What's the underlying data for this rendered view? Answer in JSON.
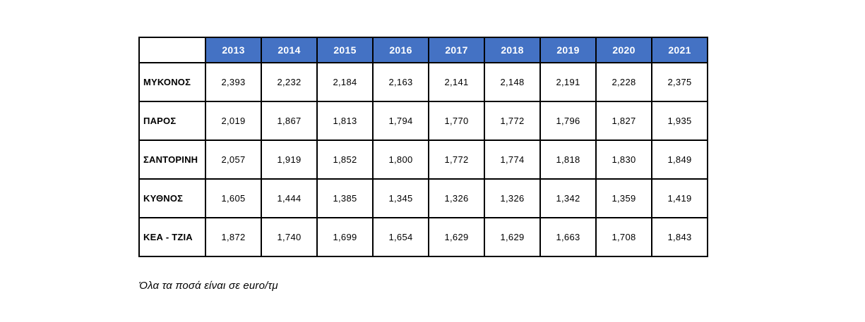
{
  "colors": {
    "header_bg": "#4472C4",
    "header_text": "#FFFFFF",
    "border": "#000000"
  },
  "chart_data": {
    "type": "table",
    "columns": [
      "2013",
      "2014",
      "2015",
      "2016",
      "2017",
      "2018",
      "2019",
      "2020",
      "2021"
    ],
    "rows": [
      {
        "label": "ΜΥΚΟΝΟΣ",
        "values": [
          "2,393",
          "2,232",
          "2,184",
          "2,163",
          "2,141",
          "2,148",
          "2,191",
          "2,228",
          "2,375"
        ]
      },
      {
        "label": "ΠΑΡΟΣ",
        "values": [
          "2,019",
          "1,867",
          "1,813",
          "1,794",
          "1,770",
          "1,772",
          "1,796",
          "1,827",
          "1,935"
        ]
      },
      {
        "label": "ΣΑΝΤΟΡΙΝΗ",
        "values": [
          "2,057",
          "1,919",
          "1,852",
          "1,800",
          "1,772",
          "1,774",
          "1,818",
          "1,830",
          "1,849"
        ]
      },
      {
        "label": "ΚΥΘΝΟΣ",
        "values": [
          "1,605",
          "1,444",
          "1,385",
          "1,345",
          "1,326",
          "1,326",
          "1,342",
          "1,359",
          "1,419"
        ]
      },
      {
        "label": "ΚΕΑ - ΤΖΙΑ",
        "values": [
          "1,872",
          "1,740",
          "1,699",
          "1,654",
          "1,629",
          "1,629",
          "1,663",
          "1,708",
          "1,843"
        ]
      }
    ],
    "unit_note": "Όλα τα ποσά είναι σε euro/τμ",
    "legend_position": "none",
    "grid": true
  }
}
